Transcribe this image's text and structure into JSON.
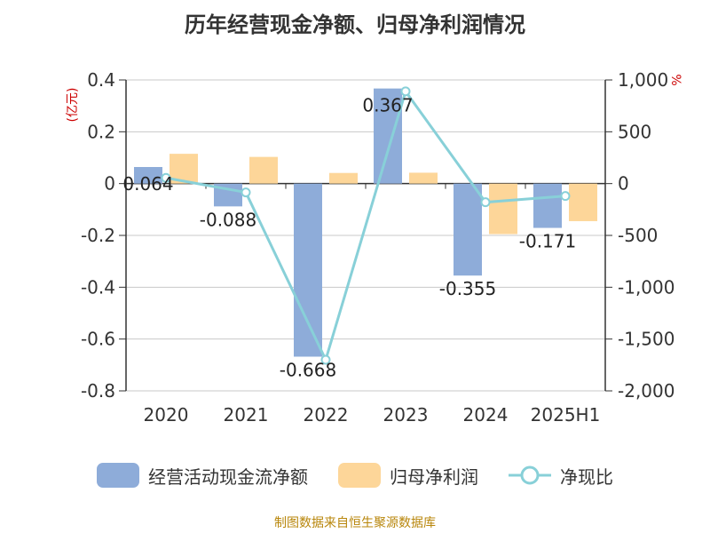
{
  "title": "历年经营现金净额、归母净利润情况",
  "source": "制图数据来自恒生聚源数据库",
  "chart_data": {
    "type": "bar",
    "categories": [
      "2020",
      "2021",
      "2022",
      "2023",
      "2024",
      "2025H1"
    ],
    "left_unit": "(亿元)",
    "right_unit": "%",
    "ylim_left": [
      -0.8,
      0.4
    ],
    "ylim_right": [
      -2000,
      1000
    ],
    "left_ticks": [
      "0.4",
      "0.2",
      "0",
      "-0.2",
      "-0.4",
      "-0.6",
      "-0.8"
    ],
    "right_ticks": [
      "1,000",
      "500",
      "0",
      "-500",
      "-1,000",
      "-1,500",
      "-2,000"
    ],
    "grid": true,
    "legend_position": "bottom",
    "series": [
      {
        "name": "经营活动现金流净额",
        "kind": "bar",
        "axis": "left",
        "color": "#8eacd9",
        "values": [
          0.064,
          -0.088,
          -0.668,
          0.367,
          -0.355,
          -0.171
        ],
        "labels": [
          "0.064",
          "-0.088",
          "-0.668",
          "0.367",
          "-0.355",
          "-0.171"
        ]
      },
      {
        "name": "归母净利润",
        "kind": "bar",
        "axis": "left",
        "color": "#fdd699",
        "values": [
          0.115,
          0.103,
          0.041,
          0.042,
          -0.195,
          -0.145
        ]
      },
      {
        "name": "净现比",
        "kind": "line",
        "axis": "right",
        "color": "#88d0d8",
        "values": [
          55,
          -85,
          -1700,
          890,
          -180,
          -120
        ]
      }
    ]
  },
  "legend": [
    {
      "label": "经营活动现金流净额",
      "color": "#8eacd9",
      "icon": "bar-swatch"
    },
    {
      "label": "归母净利润",
      "color": "#fdd699",
      "icon": "bar-swatch"
    },
    {
      "label": "净现比",
      "color": "#88d0d8",
      "icon": "line-circle"
    }
  ]
}
